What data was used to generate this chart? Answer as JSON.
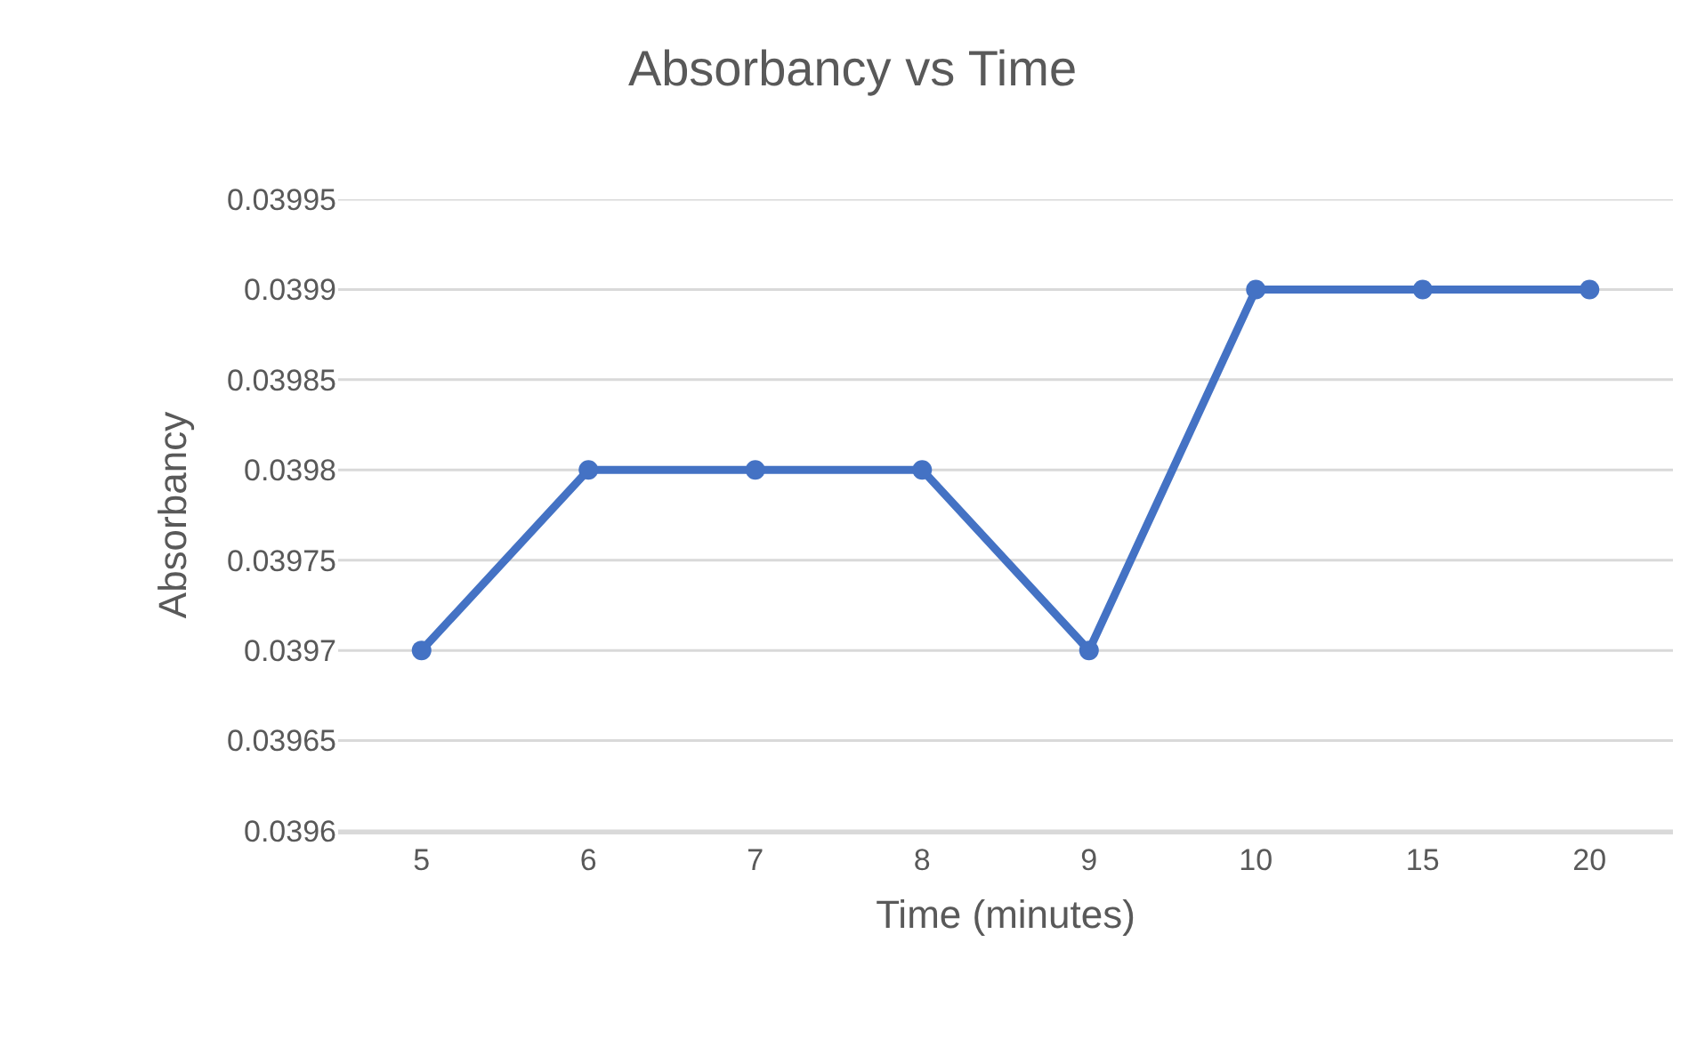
{
  "chart_data": {
    "type": "line",
    "title": "Absorbancy vs Time",
    "xlabel": "Time (minutes)",
    "ylabel": "Absorbancy",
    "categories": [
      "5",
      "6",
      "7",
      "8",
      "9",
      "10",
      "15",
      "20"
    ],
    "series": [
      {
        "color": "#4472c4",
        "values": [
          0.0397,
          0.0398,
          0.0398,
          0.0398,
          0.0397,
          0.0399,
          0.0399,
          0.0399
        ]
      }
    ],
    "ylim": [
      0.0396,
      0.03995
    ],
    "yticks": [
      0.0396,
      0.03965,
      0.0397,
      0.03975,
      0.0398,
      0.03985,
      0.0399,
      0.03995
    ],
    "grid": "y",
    "marker": "circle",
    "line_style": "solid"
  }
}
